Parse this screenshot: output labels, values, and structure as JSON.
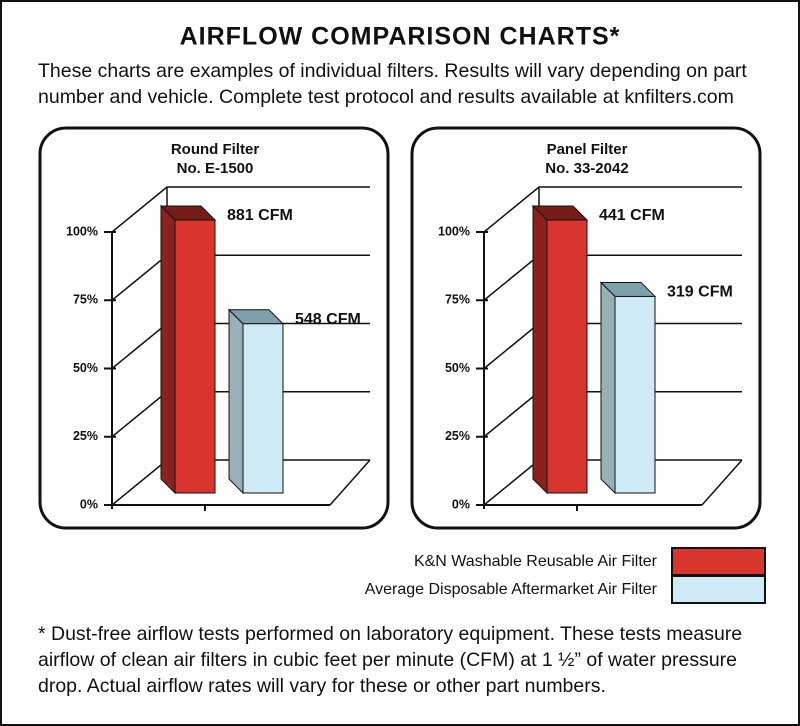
{
  "header": {
    "title": "AIRFLOW COMPARISON CHARTS*",
    "subtitle": [
      "These charts are examples of individual filters. Results will vary depending on part",
      "number and vehicle. Complete test protocol and results available at knfilters.com"
    ]
  },
  "legend": [
    {
      "name": "K&N Washable Reusable Air Filter",
      "color": "#d8352e"
    },
    {
      "name": "Average Disposable Aftermarket Air Filter",
      "color": "#cdeaf5"
    }
  ],
  "chart_data": [
    {
      "type": "bar3d",
      "title": [
        "Round Filter",
        "No. E-1500"
      ],
      "values": [
        100,
        62
      ],
      "annotations": [
        "881 CFM",
        "548 CFM"
      ],
      "ylim": [
        0,
        100
      ],
      "yticks": [
        {
          "value": 0,
          "label": "0%"
        },
        {
          "value": 25,
          "label": "25%"
        },
        {
          "value": 50,
          "label": "50%"
        },
        {
          "value": 75,
          "label": "75%"
        },
        {
          "value": 100,
          "label": "100%"
        }
      ],
      "grid": true
    },
    {
      "type": "bar3d",
      "title": [
        "Panel Filter",
        "No. 33-2042"
      ],
      "values": [
        100,
        72
      ],
      "annotations": [
        "441 CFM",
        "319 CFM"
      ],
      "ylim": [
        0,
        100
      ],
      "yticks": [
        {
          "value": 0,
          "label": "0%"
        },
        {
          "value": 25,
          "label": "25%"
        },
        {
          "value": 50,
          "label": "50%"
        },
        {
          "value": 75,
          "label": "75%"
        },
        {
          "value": 100,
          "label": "100%"
        }
      ],
      "grid": true
    }
  ],
  "footnote": [
    "* Dust-free airflow tests performed on laboratory equipment. These tests measure",
    "airflow of clean air filters in cubic feet per minute (CFM) at 1 ½” of water pressure",
    "drop. Actual airflow rates will vary for these or other part numbers."
  ]
}
